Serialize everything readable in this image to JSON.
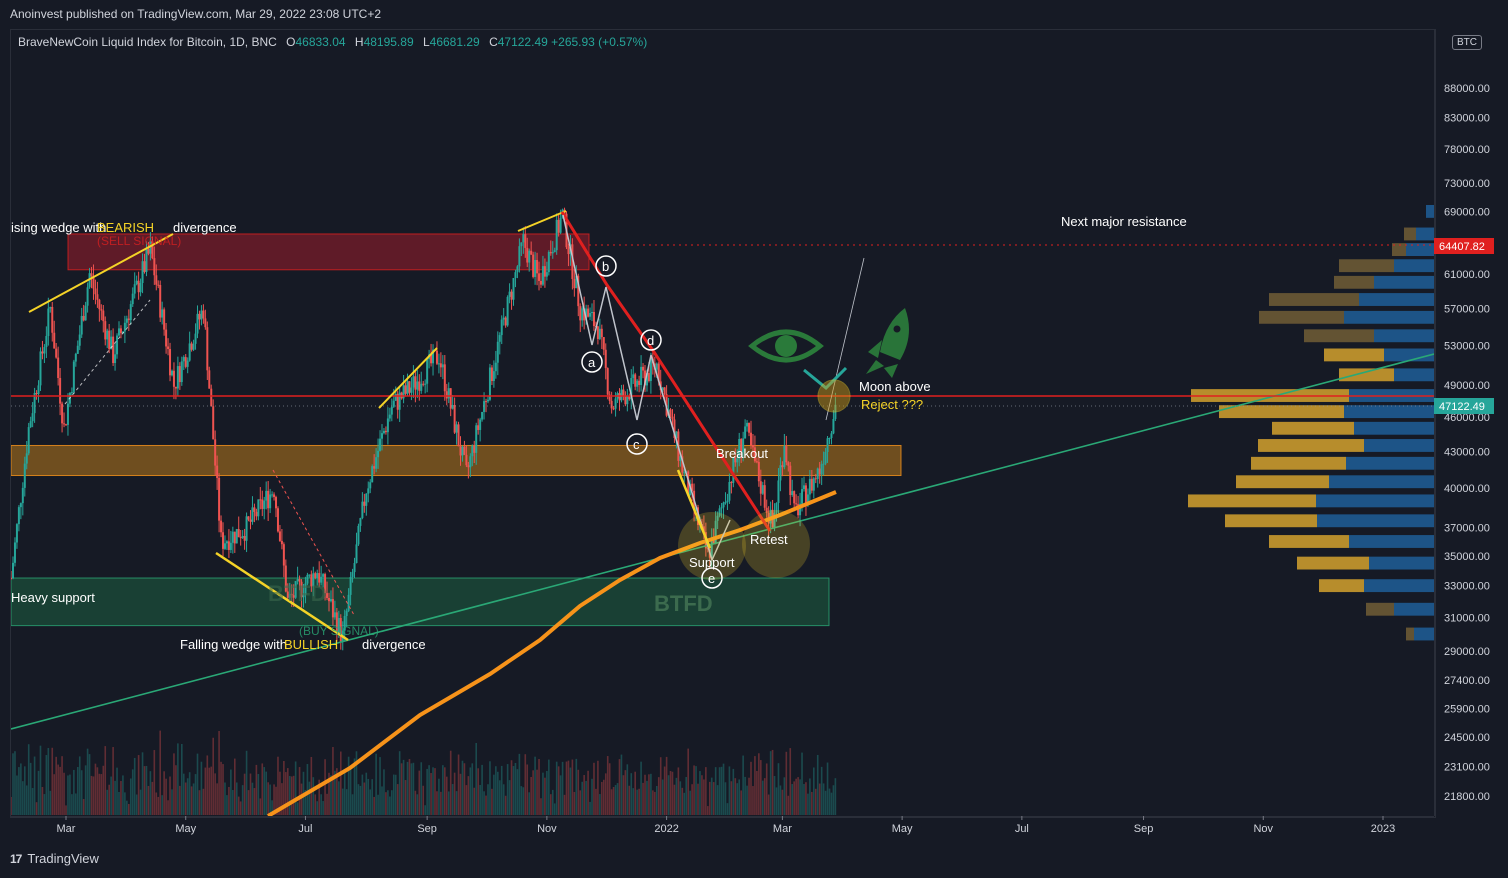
{
  "header": {
    "published": "Anoinvest published on TradingView.com, Mar 29, 2022 23:08 UTC+2",
    "symbol": "BraveNewCoin Liquid Index for Bitcoin, 1D, BNC",
    "open_label": "O",
    "open": "46833.04",
    "high_label": "H",
    "high": "48195.89",
    "low_label": "L",
    "low": "46681.29",
    "close_label": "C",
    "close": "47122.49",
    "change": "+265.93 (+0.57%)",
    "currency_badge": "BTC"
  },
  "footer": {
    "brand": "TradingView",
    "logo": "17"
  },
  "price_labels": {
    "current": "47122.49",
    "resistance": "64407.82"
  },
  "annotations": {
    "rising_wedge": "ising wedge with",
    "bearish": "BEARISH",
    "divergence_top": "divergence",
    "sell_signal": "(SELL SIGNAL)",
    "falling_wedge": "Falling wedge with",
    "bullish": "BULLISH",
    "divergence_bottom": "divergence",
    "buy_signal": "(BUY SIGNAL)",
    "heavy_support": "Heavy support",
    "btfd": "BTFD",
    "btfd_faded": "BTFD",
    "breakout": "Breakout",
    "support": "Support",
    "retest": "Retest",
    "moon_above": "Moon above",
    "reject": "Reject ???",
    "next_resistance": "Next major resistance",
    "wave_a": "a",
    "wave_b": "b",
    "wave_c": "c",
    "wave_d": "d",
    "wave_e": "e"
  },
  "colors": {
    "background": "#161a25",
    "up": "#26a69a",
    "down": "#ef5350",
    "wedge": "#f5d327",
    "ma": "#f7931a",
    "resistance_line": "#e0201f",
    "trend": "#2aa876"
  },
  "chart_data": {
    "type": "candlestick",
    "y_scale": "log",
    "ylim": [
      19000,
      95000
    ],
    "y_ticks": [
      21800,
      23100,
      24500,
      25900,
      27400,
      29000,
      31000,
      33000,
      35000,
      37000,
      40000,
      43000,
      46000,
      49000,
      53000,
      57000,
      61000,
      65000,
      69000,
      73000,
      78000,
      83000,
      88000
    ],
    "y_tick_labels": [
      "21800.00",
      "23100.00",
      "24500.00",
      "25900.00",
      "27400.00",
      "29000.00",
      "31000.00",
      "33000.00",
      "35000.00",
      "37000.00",
      "40000.00",
      "43000.00",
      "46000.00",
      "49000.00",
      "53000.00",
      "57000.00",
      "61000.00",
      "65000.00",
      "69000.00",
      "73000.00",
      "78000.00",
      "83000.00",
      "88000.00"
    ],
    "x_ticks": [
      "Mar",
      "May",
      "Jul",
      "Sep",
      "Nov",
      "2022",
      "Mar",
      "May",
      "Jul",
      "Sep",
      "Nov",
      "2023"
    ],
    "x_tick_dates": [
      "2021-03-01",
      "2021-05-01",
      "2021-07-01",
      "2021-09-01",
      "2021-11-01",
      "2022-01-01",
      "2022-03-01",
      "2022-05-01",
      "2022-07-01",
      "2022-09-01",
      "2022-11-01",
      "2023-01-01"
    ],
    "price_path": [
      [
        "2021-02-01",
        33500
      ],
      [
        "2021-02-10",
        45000
      ],
      [
        "2021-02-21",
        57000
      ],
      [
        "2021-02-28",
        45000
      ],
      [
        "2021-03-13",
        61000
      ],
      [
        "2021-03-25",
        52000
      ],
      [
        "2021-04-13",
        64000
      ],
      [
        "2021-04-25",
        49000
      ],
      [
        "2021-05-10",
        57000
      ],
      [
        "2021-05-19",
        36000
      ],
      [
        "2021-06-01",
        37000
      ],
      [
        "2021-06-15",
        40000
      ],
      [
        "2021-06-22",
        32000
      ],
      [
        "2021-07-07",
        34000
      ],
      [
        "2021-07-20",
        29800
      ],
      [
        "2021-08-01",
        40000
      ],
      [
        "2021-08-14",
        47000
      ],
      [
        "2021-08-25",
        49000
      ],
      [
        "2021-09-07",
        52000
      ],
      [
        "2021-09-21",
        41000
      ],
      [
        "2021-10-01",
        48000
      ],
      [
        "2021-10-20",
        65000
      ],
      [
        "2021-10-28",
        60000
      ],
      [
        "2021-11-09",
        68500
      ],
      [
        "2021-11-18",
        57000
      ],
      [
        "2021-11-27",
        55000
      ],
      [
        "2021-12-04",
        47000
      ],
      [
        "2021-12-27",
        51000
      ],
      [
        "2022-01-10",
        41000
      ],
      [
        "2022-01-22",
        35000
      ],
      [
        "2022-02-10",
        45000
      ],
      [
        "2022-02-24",
        37000
      ],
      [
        "2022-03-02",
        44000
      ],
      [
        "2022-03-07",
        38000
      ],
      [
        "2022-03-20",
        41500
      ],
      [
        "2022-03-28",
        47122
      ]
    ],
    "zones": [
      {
        "name": "sell-zone",
        "y": [
          61500,
          66000
        ]
      },
      {
        "name": "breakout-zone",
        "y": [
          41000,
          43500
        ]
      },
      {
        "name": "support-zone",
        "y": [
          30500,
          33500
        ]
      }
    ],
    "levels": [
      {
        "name": "next major resistance",
        "value": 64407.82
      },
      {
        "name": "current price",
        "value": 47122.49
      }
    ]
  }
}
